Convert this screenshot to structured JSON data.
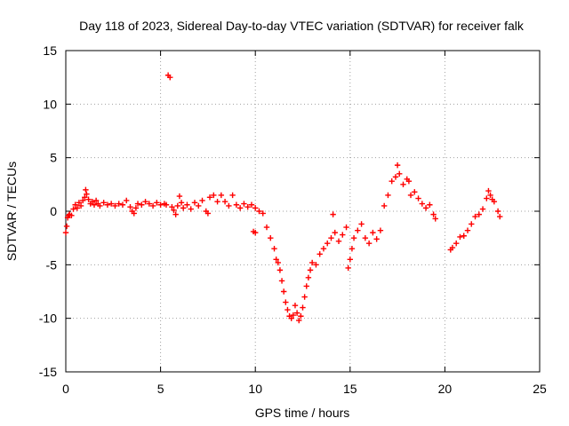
{
  "chart_data": {
    "type": "scatter",
    "title": "Day 118 of 2023, Sidereal Day-to-day VTEC variation (SDTVAR) for receiver falk",
    "xlabel": "GPS time / hours",
    "ylabel": "SDTVAR / TECUs",
    "xlim": [
      0,
      25
    ],
    "ylim": [
      -15,
      15
    ],
    "xticks": [
      0,
      5,
      10,
      15,
      20,
      25
    ],
    "yticks": [
      -15,
      -10,
      -5,
      0,
      5,
      10,
      15
    ],
    "grid": true,
    "marker": "+",
    "color": "#ff0000",
    "series": [
      {
        "name": "SDTVAR",
        "points": [
          [
            0.0,
            -2.0
          ],
          [
            0.05,
            -1.4
          ],
          [
            0.1,
            -0.6
          ],
          [
            0.15,
            -0.4
          ],
          [
            0.2,
            -0.3
          ],
          [
            0.3,
            -0.4
          ],
          [
            0.4,
            0.2
          ],
          [
            0.5,
            0.6
          ],
          [
            0.6,
            0.3
          ],
          [
            0.7,
            0.8
          ],
          [
            0.8,
            0.5
          ],
          [
            0.9,
            1.0
          ],
          [
            1.0,
            1.3
          ],
          [
            1.05,
            2.0
          ],
          [
            1.1,
            1.6
          ],
          [
            1.2,
            1.1
          ],
          [
            1.3,
            0.7
          ],
          [
            1.4,
            0.9
          ],
          [
            1.5,
            0.6
          ],
          [
            1.6,
            1.0
          ],
          [
            1.7,
            0.7
          ],
          [
            1.8,
            0.5
          ],
          [
            2.0,
            0.8
          ],
          [
            2.2,
            0.6
          ],
          [
            2.4,
            0.7
          ],
          [
            2.6,
            0.5
          ],
          [
            2.8,
            0.7
          ],
          [
            3.0,
            0.6
          ],
          [
            3.2,
            1.0
          ],
          [
            3.4,
            0.4
          ],
          [
            3.5,
            0.0
          ],
          [
            3.6,
            -0.2
          ],
          [
            3.7,
            0.3
          ],
          [
            3.8,
            0.7
          ],
          [
            4.0,
            0.6
          ],
          [
            4.2,
            0.9
          ],
          [
            4.4,
            0.7
          ],
          [
            4.6,
            0.5
          ],
          [
            4.8,
            0.8
          ],
          [
            5.0,
            0.6
          ],
          [
            5.2,
            0.7
          ],
          [
            5.3,
            0.6
          ],
          [
            5.4,
            12.7
          ],
          [
            5.5,
            12.5
          ],
          [
            5.6,
            0.4
          ],
          [
            5.7,
            0.1
          ],
          [
            5.8,
            -0.3
          ],
          [
            5.9,
            0.5
          ],
          [
            6.0,
            1.4
          ],
          [
            6.1,
            0.8
          ],
          [
            6.2,
            0.3
          ],
          [
            6.4,
            0.6
          ],
          [
            6.6,
            0.2
          ],
          [
            6.8,
            0.8
          ],
          [
            7.0,
            0.5
          ],
          [
            7.2,
            1.0
          ],
          [
            7.4,
            0.0
          ],
          [
            7.5,
            -0.2
          ],
          [
            7.6,
            1.3
          ],
          [
            7.8,
            1.5
          ],
          [
            8.0,
            0.9
          ],
          [
            8.2,
            1.5
          ],
          [
            8.4,
            0.9
          ],
          [
            8.6,
            0.5
          ],
          [
            8.8,
            1.5
          ],
          [
            9.0,
            0.6
          ],
          [
            9.2,
            0.3
          ],
          [
            9.4,
            0.7
          ],
          [
            9.6,
            0.4
          ],
          [
            9.8,
            0.6
          ],
          [
            10.0,
            0.3
          ],
          [
            10.2,
            0.0
          ],
          [
            9.9,
            -1.9
          ],
          [
            10.0,
            -2.0
          ],
          [
            10.4,
            -0.2
          ],
          [
            10.6,
            -1.5
          ],
          [
            10.8,
            -2.5
          ],
          [
            11.0,
            -3.5
          ],
          [
            11.1,
            -4.5
          ],
          [
            11.2,
            -4.8
          ],
          [
            11.3,
            -5.5
          ],
          [
            11.4,
            -6.5
          ],
          [
            11.5,
            -7.5
          ],
          [
            11.6,
            -8.5
          ],
          [
            11.7,
            -9.2
          ],
          [
            11.8,
            -9.8
          ],
          [
            11.9,
            -10.0
          ],
          [
            12.0,
            -9.7
          ],
          [
            12.1,
            -8.8
          ],
          [
            12.2,
            -9.5
          ],
          [
            12.3,
            -10.2
          ],
          [
            12.4,
            -9.8
          ],
          [
            12.5,
            -9.0
          ],
          [
            12.6,
            -8.0
          ],
          [
            12.7,
            -7.0
          ],
          [
            12.8,
            -6.2
          ],
          [
            12.9,
            -5.5
          ],
          [
            13.0,
            -4.8
          ],
          [
            13.2,
            -5.0
          ],
          [
            13.4,
            -4.0
          ],
          [
            13.6,
            -3.5
          ],
          [
            13.8,
            -3.0
          ],
          [
            14.0,
            -2.5
          ],
          [
            14.1,
            -0.3
          ],
          [
            14.2,
            -2.0
          ],
          [
            14.4,
            -2.8
          ],
          [
            14.6,
            -2.2
          ],
          [
            14.8,
            -1.5
          ],
          [
            14.9,
            -5.3
          ],
          [
            15.0,
            -4.5
          ],
          [
            15.1,
            -3.5
          ],
          [
            15.2,
            -2.5
          ],
          [
            15.4,
            -1.8
          ],
          [
            15.6,
            -1.2
          ],
          [
            15.8,
            -2.5
          ],
          [
            16.0,
            -3.0
          ],
          [
            16.2,
            -2.0
          ],
          [
            16.4,
            -2.6
          ],
          [
            16.6,
            -1.8
          ],
          [
            16.8,
            0.5
          ],
          [
            17.0,
            1.5
          ],
          [
            17.2,
            2.8
          ],
          [
            17.4,
            3.2
          ],
          [
            17.5,
            4.3
          ],
          [
            17.6,
            3.5
          ],
          [
            17.8,
            2.5
          ],
          [
            18.0,
            3.0
          ],
          [
            18.1,
            2.8
          ],
          [
            18.2,
            1.5
          ],
          [
            18.4,
            1.8
          ],
          [
            18.6,
            1.2
          ],
          [
            18.8,
            0.7
          ],
          [
            19.0,
            0.3
          ],
          [
            19.2,
            0.6
          ],
          [
            19.4,
            -0.3
          ],
          [
            19.5,
            -0.7
          ],
          [
            20.3,
            -3.6
          ],
          [
            20.4,
            -3.4
          ],
          [
            20.6,
            -3.0
          ],
          [
            20.8,
            -2.4
          ],
          [
            21.0,
            -2.3
          ],
          [
            21.2,
            -1.8
          ],
          [
            21.4,
            -1.2
          ],
          [
            21.6,
            -0.5
          ],
          [
            21.8,
            -0.3
          ],
          [
            22.0,
            0.2
          ],
          [
            22.2,
            1.2
          ],
          [
            22.3,
            1.9
          ],
          [
            22.4,
            1.5
          ],
          [
            22.5,
            1.1
          ],
          [
            22.6,
            0.9
          ],
          [
            22.8,
            0.0
          ],
          [
            22.9,
            -0.5
          ]
        ]
      }
    ]
  }
}
